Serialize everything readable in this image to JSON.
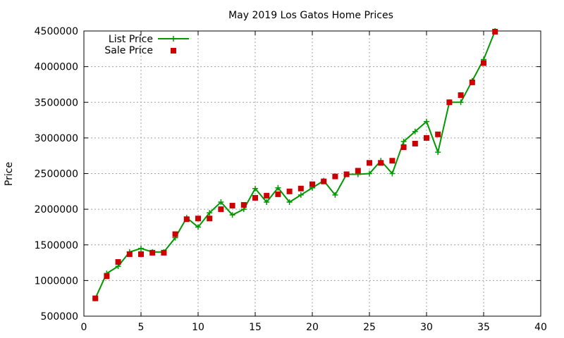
{
  "chart_data": {
    "type": "line",
    "title": "May 2019 Los Gatos Home Prices",
    "xlabel": "",
    "ylabel": "Price",
    "xlim": [
      0,
      40
    ],
    "ylim": [
      500000,
      4500000
    ],
    "xticks": [
      0,
      5,
      10,
      15,
      20,
      25,
      30,
      35,
      40
    ],
    "yticks": [
      500000,
      1000000,
      1500000,
      2000000,
      2500000,
      3000000,
      3500000,
      4000000,
      4500000
    ],
    "grid": true,
    "legend_position": "top-left",
    "series": [
      {
        "name": "List Price",
        "style": "line-plus",
        "color": "#009900",
        "x": [
          1,
          2,
          3,
          4,
          5,
          6,
          7,
          8,
          9,
          10,
          11,
          12,
          13,
          14,
          15,
          16,
          17,
          18,
          19,
          20,
          21,
          22,
          23,
          24,
          25,
          26,
          27,
          28,
          29,
          30,
          31,
          32,
          33,
          34,
          35,
          36
        ],
        "y": [
          750000,
          1100000,
          1200000,
          1400000,
          1450000,
          1400000,
          1400000,
          1600000,
          1880000,
          1750000,
          1950000,
          2100000,
          1920000,
          2000000,
          2290000,
          2100000,
          2300000,
          2100000,
          2200000,
          2300000,
          2400000,
          2200000,
          2490000,
          2490000,
          2500000,
          2680000,
          2500000,
          2950000,
          3090000,
          3230000,
          2800000,
          3500000,
          3500000,
          3800000,
          4100000,
          4500000
        ]
      },
      {
        "name": "Sale Price",
        "style": "square-marker",
        "color": "#cc0000",
        "x": [
          1,
          2,
          3,
          4,
          5,
          6,
          7,
          8,
          9,
          10,
          11,
          12,
          13,
          14,
          15,
          16,
          17,
          18,
          19,
          20,
          21,
          22,
          23,
          24,
          25,
          26,
          27,
          28,
          29,
          30,
          31,
          32,
          33,
          34,
          35,
          36
        ],
        "y": [
          750000,
          1060000,
          1260000,
          1370000,
          1370000,
          1390000,
          1390000,
          1650000,
          1860000,
          1870000,
          1870000,
          2000000,
          2050000,
          2060000,
          2160000,
          2190000,
          2210000,
          2250000,
          2290000,
          2350000,
          2390000,
          2460000,
          2490000,
          2540000,
          2650000,
          2650000,
          2680000,
          2870000,
          2920000,
          3000000,
          3050000,
          3500000,
          3600000,
          3780000,
          4050000,
          4490000
        ]
      }
    ]
  }
}
